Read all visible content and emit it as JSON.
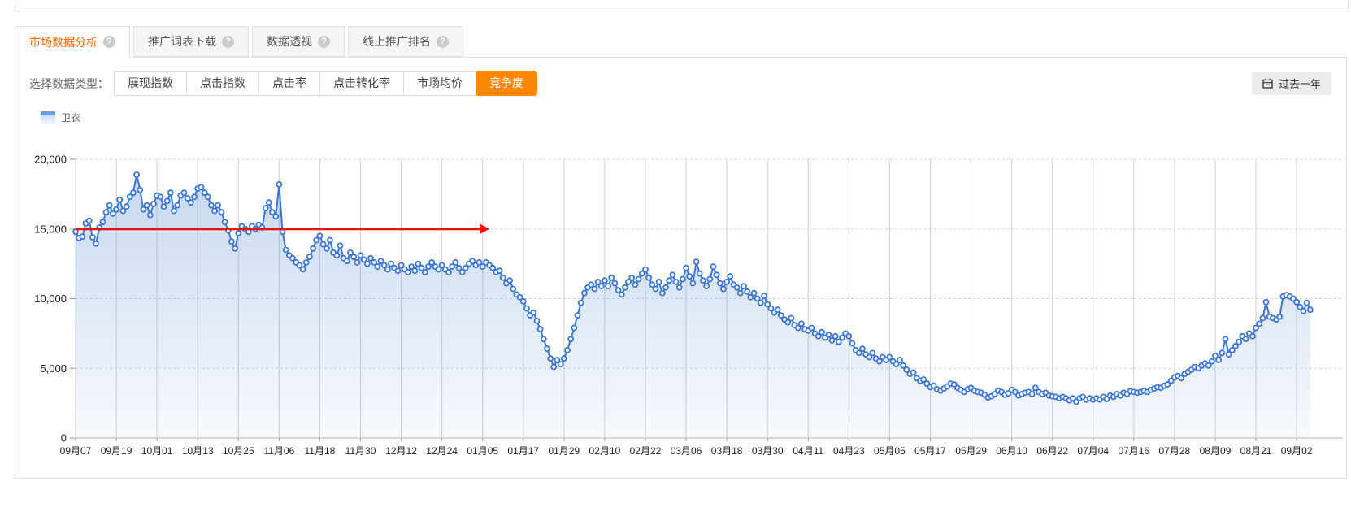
{
  "tabs": [
    {
      "name": "tab-market-data-analysis",
      "label": "市场数据分析",
      "active": true,
      "help_icon_glyph": "?"
    },
    {
      "name": "tab-keyword-list-download",
      "label": "推广词表下载",
      "active": false,
      "help_icon_glyph": "?"
    },
    {
      "name": "tab-data-pivot",
      "label": "数据透视",
      "active": false,
      "help_icon_glyph": "?"
    },
    {
      "name": "tab-online-promotion-ranking",
      "label": "线上推广排名",
      "active": false,
      "help_icon_glyph": "?"
    }
  ],
  "controls": {
    "label": "选择数据类型：",
    "metric_buttons": [
      {
        "name": "metric-button-impression-index",
        "label": "展现指数",
        "active": false
      },
      {
        "name": "metric-button-click-index",
        "label": "点击指数",
        "active": false
      },
      {
        "name": "metric-button-click-rate",
        "label": "点击率",
        "active": false
      },
      {
        "name": "metric-button-click-conversion-rate",
        "label": "点击转化率",
        "active": false
      },
      {
        "name": "metric-button-market-avg-price",
        "label": "市场均价",
        "active": false
      },
      {
        "name": "metric-button-competition",
        "label": "竞争度",
        "active": true
      }
    ],
    "date_range": {
      "label": "过去一年",
      "icon": "calendar-icon"
    }
  },
  "legend": {
    "label": "卫衣"
  },
  "colors": {
    "accent_orange": "#ff6600",
    "active_button_bg": "#ff8800",
    "line_blue": "#3b76d3",
    "area_top": "rgba(108,154,216,0.38)",
    "area_bottom": "rgba(108,154,216,0.05)",
    "grid": "#cfcfcf",
    "grid_dashed": "#d6d6d6",
    "baseline": "#b3b3b3",
    "axis_text": "#222",
    "annotation_red": "#e81309"
  },
  "chart_data": {
    "type": "area",
    "title": "",
    "series": [
      {
        "name": "卫衣"
      }
    ],
    "sampling": "daily",
    "tick_interval_days": 12,
    "x_tick_labels": [
      "09月07",
      "09月19",
      "10月01",
      "10月13",
      "10月25",
      "11月06",
      "11月18",
      "11月30",
      "12月12",
      "12月24",
      "01月05",
      "01月17",
      "01月29",
      "02月10",
      "02月22",
      "03月06",
      "03月18",
      "03月30",
      "04月11",
      "04月23",
      "05月05",
      "05月17",
      "05月29",
      "06月10",
      "06月22",
      "07月04",
      "07月16",
      "07月28",
      "08月09",
      "08月21",
      "09月02"
    ],
    "y_ticks": [
      0,
      5000,
      10000,
      15000,
      20000
    ],
    "ylim": [
      0,
      20000
    ],
    "grid": true,
    "legend_position": "top-left",
    "values": [
      14800,
      14350,
      14450,
      15400,
      15600,
      14400,
      13950,
      15100,
      15500,
      16200,
      16700,
      16100,
      16400,
      17100,
      16300,
      16600,
      17300,
      17600,
      18900,
      17800,
      16400,
      16700,
      16000,
      16800,
      17400,
      17300,
      16600,
      17000,
      17600,
      16300,
      16700,
      17400,
      17600,
      17200,
      16900,
      17300,
      17900,
      18000,
      17600,
      17300,
      16700,
      16300,
      16700,
      16200,
      15500,
      14900,
      14100,
      13600,
      14700,
      15200,
      15000,
      14800,
      15200,
      15000,
      15300,
      15100,
      16500,
      16900,
      16200,
      15900,
      18200,
      14800,
      13500,
      13100,
      12900,
      12600,
      12400,
      12100,
      12600,
      13000,
      13600,
      14200,
      14500,
      13900,
      13600,
      14200,
      13300,
      13100,
      13800,
      12900,
      12700,
      13300,
      13000,
      12600,
      13100,
      12800,
      12500,
      12900,
      12600,
      12300,
      12700,
      12400,
      12100,
      12500,
      12200,
      12000,
      12400,
      12100,
      11900,
      12300,
      12000,
      12500,
      12200,
      11900,
      12300,
      12600,
      12300,
      12100,
      12400,
      12100,
      11900,
      12300,
      12600,
      12200,
      11900,
      12200,
      12500,
      12700,
      12400,
      12600,
      12300,
      12600,
      12400,
      12200,
      11900,
      12000,
      11500,
      11100,
      11300,
      10700,
      10300,
      10100,
      9800,
      9300,
      8800,
      9000,
      8400,
      7800,
      7100,
      6400,
      5700,
      5100,
      5600,
      5300,
      5700,
      6300,
      7100,
      7900,
      8800,
      9700,
      10400,
      10800,
      11000,
      10700,
      11200,
      10900,
      11300,
      10900,
      11500,
      11100,
      10600,
      10300,
      10800,
      11200,
      11500,
      11000,
      11400,
      11800,
      12100,
      11500,
      11000,
      10700,
      11200,
      10400,
      10800,
      11300,
      11700,
      11200,
      10800,
      11400,
      12200,
      11600,
      11100,
      12650,
      11800,
      11300,
      10900,
      11400,
      12300,
      11700,
      11100,
      10700,
      11200,
      11600,
      11000,
      10800,
      10400,
      10900,
      10500,
      10100,
      10400,
      10000,
      9700,
      10200,
      9600,
      9300,
      9000,
      9200,
      8800,
      8500,
      8300,
      8600,
      8100,
      7900,
      8200,
      7800,
      7700,
      7900,
      7500,
      7300,
      7600,
      7200,
      7400,
      7000,
      7300,
      6900,
      7200,
      7500,
      7300,
      6800,
      6300,
      6100,
      6400,
      6000,
      5800,
      6100,
      5700,
      5500,
      5800,
      5600,
      5800,
      5500,
      5300,
      5600,
      5200,
      4900,
      4600,
      4700,
      4300,
      4100,
      4200,
      3900,
      3650,
      3750,
      3500,
      3400,
      3550,
      3700,
      3900,
      3850,
      3600,
      3450,
      3300,
      3500,
      3600,
      3400,
      3300,
      3250,
      3100,
      2900,
      3000,
      3150,
      3400,
      3300,
      3100,
      3200,
      3450,
      3300,
      3050,
      3150,
      3250,
      3300,
      3150,
      3600,
      3300,
      3150,
      3250,
      3050,
      3000,
      2950,
      2850,
      2950,
      2850,
      2700,
      2850,
      2600,
      2850,
      2950,
      2750,
      2850,
      2750,
      2850,
      2750,
      2950,
      2800,
      3050,
      2950,
      3150,
      3050,
      3250,
      3150,
      3350,
      3300,
      3250,
      3300,
      3400,
      3300,
      3450,
      3550,
      3650,
      3600,
      3750,
      3850,
      4100,
      4350,
      4450,
      4300,
      4600,
      4750,
      4900,
      5100,
      5000,
      5200,
      5350,
      5200,
      5500,
      5900,
      5600,
      6100,
      7100,
      6000,
      6300,
      6600,
      6900,
      7300,
      7100,
      7500,
      7300,
      7900,
      8200,
      8600,
      9750,
      8700,
      8600,
      8500,
      8700,
      10150,
      10250,
      10150,
      10000,
      9750,
      9400,
      9100,
      9700,
      9200
    ],
    "annotation": {
      "type": "horizontal-arrow",
      "value": 15000,
      "start_day": 0,
      "end_day": 122,
      "color": "#e81309"
    }
  }
}
